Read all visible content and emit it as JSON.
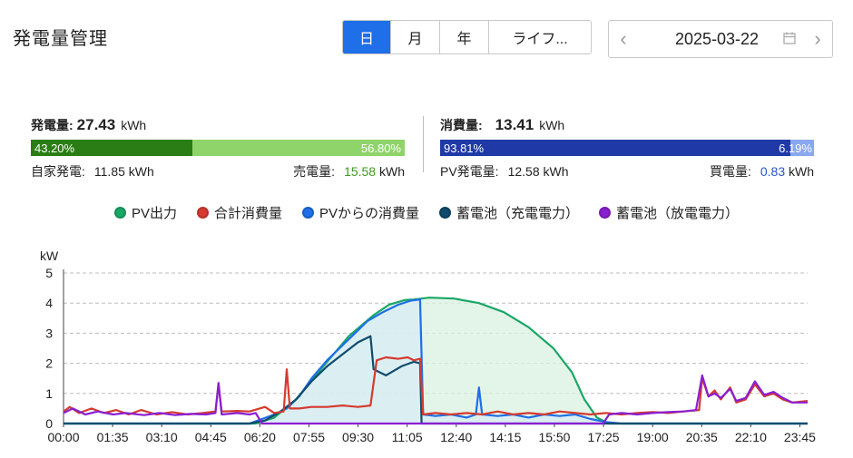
{
  "title": "発電量管理",
  "period_tabs": [
    {
      "label": "日",
      "active": true
    },
    {
      "label": "月",
      "active": false
    },
    {
      "label": "年",
      "active": false
    },
    {
      "label": "ライフ...",
      "active": false
    }
  ],
  "date_picker": {
    "value": "2025-03-22",
    "prev_icon": "chevron-left-icon",
    "next_icon": "chevron-right-icon",
    "calendar_icon": "calendar-icon"
  },
  "generation": {
    "label": "発電量:",
    "value": "27.43",
    "unit": "kWh",
    "self_pct": "43.20%",
    "sell_pct": "56.80%",
    "self_label": "自家発電:",
    "self_value": "11.85",
    "self_unit": "kWh",
    "sell_label": "売電量:",
    "sell_value": "15.58",
    "sell_unit": "kWh",
    "colors": {
      "self": "#2a7d14",
      "sell": "#8fd46a",
      "sell_text": "#3f9a22"
    }
  },
  "consumption": {
    "label": "消費量:",
    "value": "13.41",
    "unit": "kWh",
    "pv_pct": "93.81%",
    "buy_pct": "6.19%",
    "pv_label": "PV発電量:",
    "pv_value": "12.58",
    "pv_unit": "kWh",
    "buy_label": "買電量:",
    "buy_value": "0.83",
    "buy_unit": "kWh",
    "colors": {
      "pv": "#1f3aa6",
      "buy": "#8aa8ee",
      "buy_text": "#2a55c8"
    }
  },
  "legend": [
    {
      "label": "PV出力",
      "color": "#1aa765"
    },
    {
      "label": "合計消費量",
      "color": "#d63a2e"
    },
    {
      "label": "PVからの消費量",
      "color": "#1e6fe8"
    },
    {
      "label": "蓄電池（充電電力）",
      "color": "#0f4b6e"
    },
    {
      "label": "蓄電池（放電電力）",
      "color": "#8a1fd1"
    }
  ],
  "chart_data": {
    "type": "line",
    "ylabel": "kW",
    "ylim": [
      0,
      5
    ],
    "yticks": [
      "0",
      "1",
      "2",
      "3",
      "4",
      "5"
    ],
    "xlim_hours": [
      0,
      24
    ],
    "xticks": [
      "00:00",
      "01:35",
      "03:10",
      "04:45",
      "06:20",
      "07:55",
      "09:30",
      "11:05",
      "12:40",
      "14:15",
      "15:50",
      "17:25",
      "19:00",
      "20:35",
      "22:10",
      "23:45"
    ],
    "grid": true,
    "series": [
      {
        "name": "PV出力",
        "color": "#1aa765",
        "fill": "#d9f2e2",
        "points": [
          [
            0,
            0
          ],
          [
            6.2,
            0
          ],
          [
            6.8,
            0.2
          ],
          [
            7.5,
            0.8
          ],
          [
            8.3,
            1.8
          ],
          [
            9.2,
            2.9
          ],
          [
            10.0,
            3.6
          ],
          [
            10.5,
            3.95
          ],
          [
            11.0,
            4.1
          ],
          [
            11.3,
            4.12
          ],
          [
            11.8,
            4.18
          ],
          [
            12.6,
            4.15
          ],
          [
            13.4,
            4.0
          ],
          [
            14.2,
            3.7
          ],
          [
            15.0,
            3.2
          ],
          [
            15.8,
            2.5
          ],
          [
            16.4,
            1.7
          ],
          [
            16.8,
            0.8
          ],
          [
            17.2,
            0.2
          ],
          [
            17.6,
            0
          ],
          [
            24,
            0
          ]
        ]
      },
      {
        "name": "合計消費量",
        "color": "#d63a2e",
        "points": [
          [
            0,
            0.4
          ],
          [
            0.2,
            0.55
          ],
          [
            0.5,
            0.35
          ],
          [
            0.9,
            0.5
          ],
          [
            1.3,
            0.35
          ],
          [
            1.7,
            0.45
          ],
          [
            2.1,
            0.3
          ],
          [
            2.5,
            0.45
          ],
          [
            3.0,
            0.3
          ],
          [
            3.5,
            0.38
          ],
          [
            4.0,
            0.3
          ],
          [
            4.5,
            0.35
          ],
          [
            4.9,
            0.4
          ],
          [
            5.0,
            1.3
          ],
          [
            5.1,
            0.4
          ],
          [
            5.6,
            0.42
          ],
          [
            6.0,
            0.4
          ],
          [
            6.5,
            0.55
          ],
          [
            6.8,
            0.35
          ],
          [
            7.1,
            0.4
          ],
          [
            7.2,
            1.8
          ],
          [
            7.3,
            0.5
          ],
          [
            7.6,
            0.5
          ],
          [
            8.0,
            0.55
          ],
          [
            8.5,
            0.55
          ],
          [
            9.0,
            0.6
          ],
          [
            9.5,
            0.55
          ],
          [
            9.9,
            0.6
          ],
          [
            10.1,
            2.1
          ],
          [
            10.4,
            2.2
          ],
          [
            10.8,
            2.15
          ],
          [
            11.1,
            2.2
          ],
          [
            11.3,
            2.1
          ],
          [
            11.5,
            2.15
          ],
          [
            11.6,
            0.3
          ],
          [
            12.0,
            0.35
          ],
          [
            12.5,
            0.3
          ],
          [
            13.0,
            0.35
          ],
          [
            13.5,
            0.3
          ],
          [
            14.0,
            0.4
          ],
          [
            14.5,
            0.3
          ],
          [
            15.0,
            0.35
          ],
          [
            15.5,
            0.3
          ],
          [
            16.0,
            0.4
          ],
          [
            16.5,
            0.35
          ],
          [
            17.0,
            0.3
          ],
          [
            17.5,
            0.35
          ],
          [
            18.0,
            0.3
          ],
          [
            18.5,
            0.35
          ],
          [
            19.0,
            0.38
          ],
          [
            19.5,
            0.35
          ],
          [
            20.0,
            0.4
          ],
          [
            20.5,
            0.45
          ],
          [
            20.6,
            1.5
          ],
          [
            20.8,
            0.9
          ],
          [
            21.0,
            1.1
          ],
          [
            21.2,
            0.8
          ],
          [
            21.5,
            1.2
          ],
          [
            21.7,
            0.7
          ],
          [
            22.0,
            0.8
          ],
          [
            22.3,
            1.3
          ],
          [
            22.6,
            0.9
          ],
          [
            22.9,
            1.0
          ],
          [
            23.2,
            0.8
          ],
          [
            23.5,
            0.7
          ],
          [
            24,
            0.75
          ]
        ]
      },
      {
        "name": "PVからの消費量",
        "color": "#1e6fe8",
        "fill": "#d8ecf5",
        "points": [
          [
            0,
            0
          ],
          [
            6.0,
            0
          ],
          [
            6.4,
            0.15
          ],
          [
            6.8,
            0.3
          ],
          [
            7.2,
            0.5
          ],
          [
            7.6,
            0.9
          ],
          [
            8.0,
            1.5
          ],
          [
            8.5,
            2.1
          ],
          [
            9.0,
            2.6
          ],
          [
            9.4,
            3.0
          ],
          [
            9.8,
            3.4
          ],
          [
            10.3,
            3.7
          ],
          [
            10.8,
            3.95
          ],
          [
            11.2,
            4.08
          ],
          [
            11.5,
            4.12
          ],
          [
            11.6,
            0.3
          ],
          [
            12.0,
            0.25
          ],
          [
            12.5,
            0.3
          ],
          [
            13.0,
            0.2
          ],
          [
            13.3,
            0.3
          ],
          [
            13.4,
            1.2
          ],
          [
            13.5,
            0.3
          ],
          [
            14.0,
            0.25
          ],
          [
            14.5,
            0.3
          ],
          [
            15.0,
            0.2
          ],
          [
            15.5,
            0.3
          ],
          [
            16.0,
            0.25
          ],
          [
            16.5,
            0.3
          ],
          [
            17.0,
            0.15
          ],
          [
            17.5,
            0.05
          ],
          [
            18.0,
            0
          ],
          [
            24,
            0
          ]
        ]
      },
      {
        "name": "蓄電池（充電電力）",
        "color": "#0f4b6e",
        "points": [
          [
            0,
            0
          ],
          [
            6.0,
            0
          ],
          [
            6.5,
            0.1
          ],
          [
            7.0,
            0.4
          ],
          [
            7.5,
            0.8
          ],
          [
            8.0,
            1.4
          ],
          [
            8.5,
            1.9
          ],
          [
            9.0,
            2.3
          ],
          [
            9.5,
            2.7
          ],
          [
            9.9,
            2.9
          ],
          [
            10.0,
            1.8
          ],
          [
            10.4,
            1.6
          ],
          [
            10.9,
            1.9
          ],
          [
            11.3,
            2.05
          ],
          [
            11.5,
            2.0
          ],
          [
            11.55,
            0
          ],
          [
            24,
            0
          ]
        ]
      },
      {
        "name": "蓄電池（放電電力）",
        "color": "#8a1fd1",
        "points": [
          [
            0,
            0.35
          ],
          [
            0.3,
            0.5
          ],
          [
            0.7,
            0.3
          ],
          [
            1.1,
            0.4
          ],
          [
            1.6,
            0.3
          ],
          [
            2.0,
            0.35
          ],
          [
            2.6,
            0.28
          ],
          [
            3.1,
            0.35
          ],
          [
            3.6,
            0.28
          ],
          [
            4.1,
            0.32
          ],
          [
            4.6,
            0.3
          ],
          [
            4.9,
            0.35
          ],
          [
            5.0,
            1.35
          ],
          [
            5.1,
            0.3
          ],
          [
            5.6,
            0.35
          ],
          [
            6.0,
            0.3
          ],
          [
            6.2,
            0.35
          ],
          [
            6.4,
            0
          ],
          [
            7.5,
            0
          ],
          [
            17.4,
            0
          ],
          [
            17.6,
            0.3
          ],
          [
            18.0,
            0.35
          ],
          [
            18.5,
            0.3
          ],
          [
            19.0,
            0.35
          ],
          [
            19.5,
            0.38
          ],
          [
            20.0,
            0.4
          ],
          [
            20.4,
            0.45
          ],
          [
            20.6,
            1.6
          ],
          [
            20.8,
            0.9
          ],
          [
            21.0,
            1.0
          ],
          [
            21.2,
            0.85
          ],
          [
            21.5,
            1.15
          ],
          [
            21.7,
            0.75
          ],
          [
            22.0,
            0.85
          ],
          [
            22.3,
            1.4
          ],
          [
            22.6,
            0.95
          ],
          [
            22.9,
            1.05
          ],
          [
            23.2,
            0.85
          ],
          [
            23.5,
            0.7
          ],
          [
            24,
            0.7
          ]
        ]
      }
    ]
  }
}
